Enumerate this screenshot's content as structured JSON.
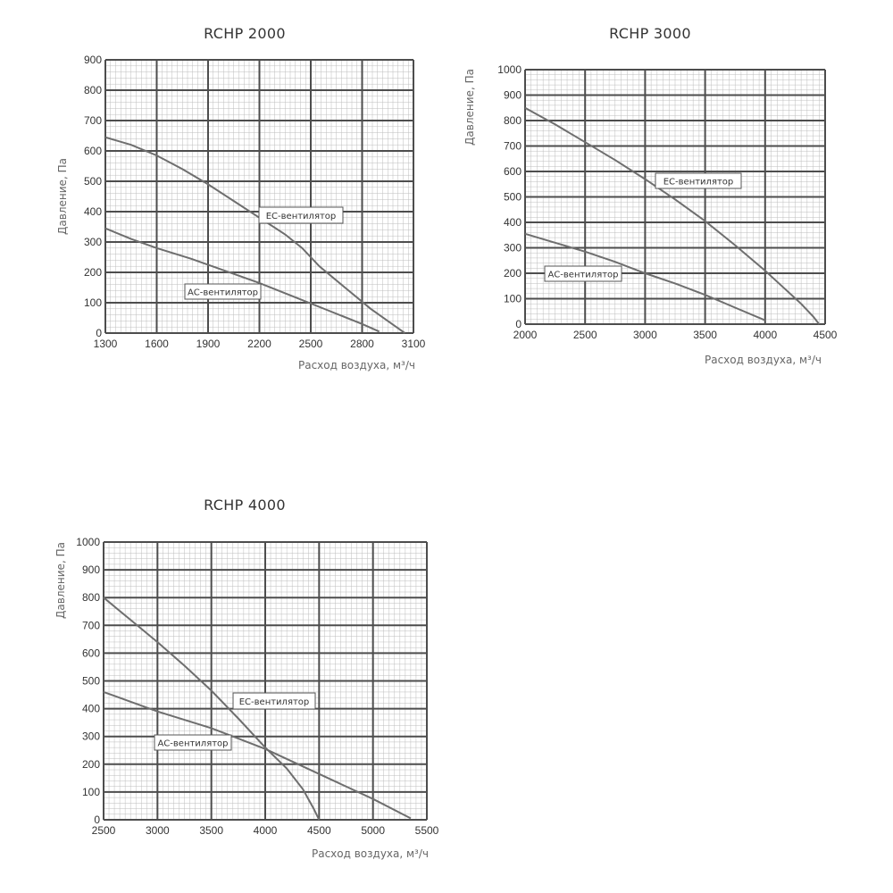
{
  "chart_data": [
    {
      "type": "line",
      "title": "RCHP 2000",
      "xlabel": "Расход воздуха, м³/ч",
      "ylabel": "Давление, Па",
      "xlim": [
        1300,
        3100
      ],
      "ylim": [
        0,
        900
      ],
      "xticks": [
        "1300",
        "1600",
        "1900",
        "2200",
        "2500",
        "2800",
        "3100"
      ],
      "yticks": [
        "0",
        "100",
        "200",
        "300",
        "400",
        "500",
        "600",
        "700",
        "800",
        "900"
      ],
      "grid": true,
      "series": [
        {
          "name": "EC-вентилятор",
          "x": [
            1300,
            1450,
            1600,
            1750,
            1900,
            2050,
            2200,
            2350,
            2450,
            2550,
            2700,
            2850,
            3000,
            3050
          ],
          "y": [
            645,
            620,
            585,
            540,
            490,
            435,
            380,
            325,
            280,
            220,
            150,
            80,
            20,
            0
          ]
        },
        {
          "name": "АС-вентилятор",
          "x": [
            1300,
            1450,
            1600,
            1800,
            2000,
            2200,
            2400,
            2600,
            2800,
            2900
          ],
          "y": [
            345,
            310,
            280,
            245,
            205,
            165,
            120,
            75,
            30,
            5
          ]
        }
      ]
    },
    {
      "type": "line",
      "title": "RCHP 3000",
      "xlabel": "Расход воздуха, м³/ч",
      "ylabel": "Давление, Па",
      "xlim": [
        2000,
        4500
      ],
      "ylim": [
        0,
        1000
      ],
      "xticks": [
        "2000",
        "2500",
        "3000",
        "3500",
        "4000",
        "4500"
      ],
      "yticks": [
        "0",
        "100",
        "200",
        "300",
        "400",
        "500",
        "600",
        "700",
        "800",
        "900",
        "1000"
      ],
      "grid": true,
      "series": [
        {
          "name": "EC-вентилятор",
          "x": [
            2000,
            2250,
            2500,
            2750,
            3000,
            3250,
            3500,
            3750,
            4000,
            4150,
            4300,
            4400,
            4450
          ],
          "y": [
            850,
            785,
            715,
            645,
            570,
            490,
            405,
            310,
            210,
            145,
            80,
            30,
            0
          ]
        },
        {
          "name": "АС-вентилятор",
          "x": [
            2000,
            2250,
            2500,
            2750,
            3000,
            3250,
            3500,
            3750,
            4000
          ],
          "y": [
            355,
            320,
            285,
            245,
            200,
            160,
            115,
            65,
            15
          ]
        }
      ]
    },
    {
      "type": "line",
      "title": "RCHP 4000",
      "xlabel": "Расход воздуха, м³/ч",
      "ylabel": "Давление, Па",
      "xlim": [
        2500,
        5500
      ],
      "ylim": [
        0,
        1000
      ],
      "xticks": [
        "2500",
        "3000",
        "3500",
        "4000",
        "4500",
        "5000",
        "5500"
      ],
      "yticks": [
        "0",
        "100",
        "200",
        "300",
        "400",
        "500",
        "600",
        "700",
        "800",
        "900",
        "1000"
      ],
      "grid": true,
      "series": [
        {
          "name": "EC-вентилятор",
          "x": [
            2500,
            2750,
            3000,
            3250,
            3500,
            3750,
            4000,
            4200,
            4350,
            4450,
            4500
          ],
          "y": [
            800,
            720,
            640,
            555,
            465,
            365,
            260,
            185,
            110,
            40,
            0
          ]
        },
        {
          "name": "АС-вентилятор",
          "x": [
            2500,
            2750,
            3000,
            3500,
            4000,
            4500,
            5000,
            5350
          ],
          "y": [
            460,
            425,
            390,
            330,
            255,
            165,
            75,
            5
          ]
        }
      ]
    }
  ]
}
